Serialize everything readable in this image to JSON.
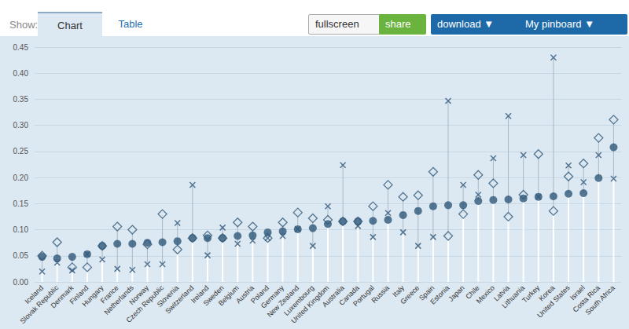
{
  "toolbar": {
    "show": "Show:",
    "tabs": [
      "Chart",
      "Table"
    ],
    "buttons": [
      "fullscreen",
      "share",
      "download ▼",
      "My pinboard ▼"
    ]
  },
  "chart_data": {
    "type": "scatter",
    "categories": [
      "Iceland",
      "Slovak Republic",
      "Denmark",
      "Finland",
      "Hungary",
      "France",
      "Netherlands",
      "Norway",
      "Czech Republic",
      "Slovenia",
      "Switzerland",
      "Ireland",
      "Sweden",
      "Belgium",
      "Austria",
      "Poland",
      "Germany",
      "New Zealand",
      "Luxembourg",
      "United Kingdom",
      "Australia",
      "Canada",
      "Portugal",
      "Russia",
      "Italy",
      "Greece",
      "Spain",
      "Estonia",
      "Japan",
      "Chile",
      "Mexico",
      "Latvia",
      "Lithuania",
      "Turkey",
      "Korea",
      "United States",
      "Israel",
      "Costa Rica",
      "South Africa"
    ],
    "series": [
      {
        "marker": "circle",
        "color": "#2f5879",
        "values": [
          0.048,
          0.045,
          0.048,
          0.053,
          0.069,
          0.073,
          0.073,
          0.075,
          0.076,
          0.078,
          0.084,
          0.084,
          0.084,
          0.088,
          0.089,
          0.095,
          0.097,
          0.101,
          0.103,
          0.111,
          0.116,
          0.116,
          0.117,
          0.119,
          0.128,
          0.136,
          0.145,
          0.147,
          0.147,
          0.155,
          0.157,
          0.158,
          0.16,
          0.163,
          0.164,
          0.169,
          0.17,
          0.199,
          0.258
        ]
      },
      {
        "marker": "diamond",
        "color": "#2f5879",
        "values": [
          0.05,
          0.076,
          0.028,
          0.028,
          0.069,
          0.106,
          0.1,
          0.072,
          0.13,
          0.062,
          0.084,
          0.089,
          0.084,
          0.114,
          0.106,
          0.084,
          0.114,
          0.133,
          0.122,
          0.119,
          0.116,
          0.116,
          0.145,
          0.186,
          0.163,
          0.166,
          0.211,
          0.088,
          0.13,
          0.205,
          0.189,
          0.125,
          0.167,
          0.245,
          0.136,
          0.202,
          0.227,
          0.276,
          0.311
        ]
      },
      {
        "marker": "x",
        "color": "#2f5879",
        "values": [
          0.02,
          0.037,
          0.022,
          0.053,
          0.043,
          0.025,
          0.023,
          0.034,
          0.034,
          0.113,
          0.186,
          0.051,
          0.104,
          0.073,
          0.079,
          0.084,
          0.088,
          0.101,
          0.069,
          0.145,
          0.224,
          0.107,
          0.086,
          0.132,
          0.095,
          0.069,
          0.086,
          0.347,
          0.186,
          0.167,
          0.237,
          0.318,
          0.243,
          0.163,
          0.43,
          0.223,
          0.191,
          0.243,
          0.198
        ]
      }
    ],
    "ylim": [
      0,
      0.45
    ],
    "yticks": [
      {
        "value": 0,
        "label": "0.00"
      },
      {
        "value": 0.05,
        "label": "0.05"
      },
      {
        "value": 0.1,
        "label": "0.10"
      },
      {
        "value": 0.15,
        "label": "0.15"
      },
      {
        "value": 0.2,
        "label": "0.20"
      },
      {
        "value": 0.25,
        "label": "0.25"
      },
      {
        "value": 0.3,
        "label": "0.30"
      },
      {
        "value": 0.35,
        "label": "0.35"
      },
      {
        "value": 0.4,
        "label": "0.40"
      },
      {
        "value": 0.45,
        "label": "0.45"
      }
    ],
    "grid": true
  }
}
